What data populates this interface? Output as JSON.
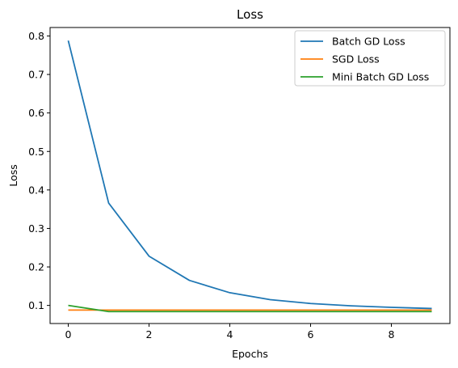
{
  "chart_data": {
    "type": "line",
    "title": "Loss",
    "xlabel": "Epochs",
    "ylabel": "Loss",
    "x": [
      0,
      1,
      2,
      3,
      4,
      5,
      6,
      7,
      8,
      9
    ],
    "xlim": [
      -0.45,
      9.45
    ],
    "ylim": [
      0.053,
      0.822
    ],
    "xticks": [
      0,
      2,
      4,
      6,
      8
    ],
    "yticks": [
      0.1,
      0.2,
      0.3,
      0.4,
      0.5,
      0.6,
      0.7,
      0.8
    ],
    "grid": false,
    "legend_position": "top-right",
    "series": [
      {
        "name": "Batch GD Loss",
        "color": "#1f77b4",
        "values": [
          0.788,
          0.366,
          0.228,
          0.165,
          0.133,
          0.115,
          0.105,
          0.099,
          0.095,
          0.092
        ]
      },
      {
        "name": "SGD Loss",
        "color": "#ff7f0e",
        "values": [
          0.088,
          0.088,
          0.088,
          0.088,
          0.088,
          0.088,
          0.088,
          0.088,
          0.088,
          0.088
        ]
      },
      {
        "name": "Mini Batch GD Loss",
        "color": "#2ca02c",
        "values": [
          0.1,
          0.084,
          0.084,
          0.084,
          0.084,
          0.084,
          0.084,
          0.084,
          0.084,
          0.084
        ]
      }
    ]
  }
}
